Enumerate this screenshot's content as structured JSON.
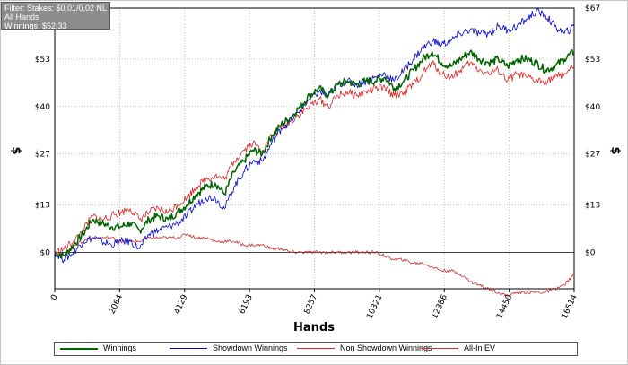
{
  "filter_box": {
    "line1": "Filter: Stakes: $0.01/0.02 NL",
    "line2": "All Hands",
    "line3": "Winnings: $52.33"
  },
  "colors": {
    "winnings": "#006400",
    "showdown": "#0000cc",
    "non_showdown": "#dd2222",
    "allin_ev": "#c83232"
  },
  "chart_data": {
    "type": "line",
    "xlabel": "Hands",
    "ylabel": "$",
    "xlim": [
      0,
      16514
    ],
    "ylim": [
      -10,
      67
    ],
    "x_ticks": [
      "0",
      "2064",
      "4129",
      "6193",
      "8257",
      "10321",
      "12386",
      "14450",
      "16514"
    ],
    "x_tick_values": [
      0,
      2064,
      4129,
      6193,
      8257,
      10321,
      12386,
      14450,
      16514
    ],
    "y_ticks": [
      "$0",
      "$13",
      "$27",
      "$40",
      "$53",
      "$67"
    ],
    "y_tick_values": [
      0,
      13,
      27,
      40,
      53,
      67
    ],
    "legend_position": "bottom",
    "grid": true,
    "series": [
      {
        "name": "Winnings",
        "key": "winnings",
        "x": [
          0,
          300,
          600,
          900,
          1200,
          1500,
          1800,
          2100,
          2400,
          2700,
          3000,
          3300,
          3600,
          3900,
          4200,
          4500,
          4800,
          5100,
          5400,
          5700,
          6000,
          6300,
          6600,
          6900,
          7200,
          7500,
          7800,
          8100,
          8400,
          8700,
          9000,
          9300,
          9600,
          9900,
          10200,
          10500,
          10800,
          11100,
          11400,
          11700,
          12000,
          12300,
          12600,
          12900,
          13200,
          13500,
          13800,
          14100,
          14400,
          14700,
          15000,
          15300,
          15600,
          15900,
          16200,
          16514
        ],
        "y": [
          0,
          -1,
          2,
          5,
          9,
          8,
          7,
          7,
          8,
          6,
          9,
          10,
          9,
          11,
          13,
          16,
          18,
          19,
          16,
          22,
          25,
          28,
          27,
          32,
          35,
          37,
          40,
          43,
          45,
          43,
          46,
          47,
          46,
          47,
          47,
          48,
          45,
          47,
          50,
          53,
          55,
          52,
          51,
          53,
          55,
          53,
          52,
          53,
          51,
          53,
          53,
          52,
          50,
          51,
          53,
          55
        ]
      },
      {
        "name": "Showdown Winnings",
        "key": "showdown",
        "x": [
          0,
          300,
          600,
          900,
          1200,
          1500,
          1800,
          2100,
          2400,
          2700,
          3000,
          3300,
          3600,
          3900,
          4200,
          4500,
          4800,
          5100,
          5400,
          5700,
          6000,
          6300,
          6600,
          6900,
          7200,
          7500,
          7800,
          8100,
          8400,
          8700,
          9000,
          9300,
          9600,
          9900,
          10200,
          10500,
          10800,
          11100,
          11400,
          11700,
          12000,
          12300,
          12600,
          12900,
          13200,
          13500,
          13800,
          14100,
          14400,
          14700,
          15000,
          15300,
          15600,
          15900,
          16200,
          16514
        ],
        "y": [
          0,
          -2,
          0,
          3,
          4,
          3,
          2,
          3,
          3,
          1,
          5,
          6,
          7,
          8,
          10,
          13,
          15,
          15,
          12,
          18,
          22,
          25,
          25,
          30,
          34,
          36,
          39,
          42,
          44,
          43,
          46,
          47,
          46,
          47,
          48,
          49,
          47,
          50,
          53,
          56,
          58,
          57,
          58,
          60,
          61,
          60,
          60,
          62,
          61,
          62,
          64,
          66,
          65,
          62,
          60,
          62
        ]
      },
      {
        "name": "Non Showdown Winnings",
        "key": "non_showdown",
        "x": [
          0,
          300,
          600,
          900,
          1200,
          1500,
          1800,
          2100,
          2400,
          2700,
          3000,
          3300,
          3600,
          3900,
          4200,
          4500,
          4800,
          5100,
          5400,
          5700,
          6000,
          6300,
          6600,
          6900,
          7200,
          7500,
          7800,
          8100,
          8400,
          8700,
          9000,
          9300,
          9600,
          9900,
          10200,
          10500,
          10800,
          11100,
          11400,
          11700,
          12000,
          12300,
          12600,
          12900,
          13200,
          13500,
          13800,
          14100,
          14400,
          14700,
          15000,
          15300,
          15600,
          15900,
          16200,
          16514
        ],
        "y": [
          0,
          1,
          3,
          6,
          10,
          9,
          10,
          11,
          12,
          9,
          11,
          12,
          11,
          13,
          15,
          18,
          20,
          21,
          20,
          25,
          28,
          30,
          28,
          32,
          34,
          36,
          38,
          40,
          42,
          40,
          43,
          44,
          43,
          44,
          45,
          45,
          43,
          44,
          46,
          49,
          52,
          49,
          48,
          50,
          52,
          50,
          49,
          50,
          47,
          49,
          48,
          47,
          47,
          48,
          49,
          51
        ]
      },
      {
        "name": "All-In EV",
        "key": "allin_ev",
        "x": [
          0,
          300,
          600,
          900,
          1200,
          1500,
          1800,
          2100,
          2400,
          2700,
          3000,
          3300,
          3600,
          3900,
          4200,
          4500,
          4800,
          5100,
          5400,
          5700,
          6000,
          6300,
          6600,
          6900,
          7200,
          7500,
          7800,
          8100,
          8400,
          8700,
          9000,
          9300,
          9600,
          9900,
          10200,
          10500,
          10800,
          11100,
          11400,
          11700,
          12000,
          12300,
          12600,
          12900,
          13200,
          13500,
          13800,
          14100,
          14400,
          14700,
          15000,
          15300,
          15600,
          15900,
          16200,
          16514
        ],
        "y": [
          0,
          -1,
          2,
          3,
          4,
          4,
          4,
          3,
          3,
          3,
          4,
          4,
          4,
          4,
          5,
          4,
          4,
          3,
          3,
          3,
          2,
          2,
          2,
          1,
          1,
          0,
          0,
          0,
          0,
          0,
          0,
          0,
          0,
          0,
          0,
          -1,
          -2,
          -2,
          -3,
          -3,
          -4,
          -5,
          -5,
          -6,
          -8,
          -9,
          -10,
          -11,
          -12,
          -11,
          -11,
          -11,
          -11,
          -10,
          -9,
          -6
        ]
      }
    ]
  }
}
